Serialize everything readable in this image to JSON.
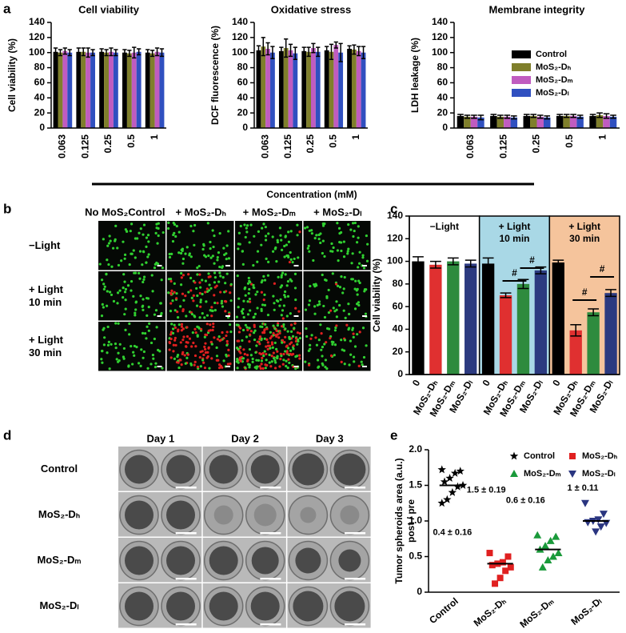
{
  "panel_labels": [
    "a",
    "b",
    "c",
    "d",
    "e"
  ],
  "chart_data": [
    {
      "type": "bar",
      "title": "Cell viability",
      "ylabel": "Cell viability (%)",
      "categories": [
        "0.063",
        "0.125",
        "0.25",
        "0.5",
        "1"
      ],
      "series": [
        {
          "color": "#000000",
          "values": [
            101,
            101,
            101,
            100,
            100
          ],
          "errors": [
            5,
            5,
            4,
            4,
            4
          ]
        },
        {
          "color": "#7f7f2b",
          "values": [
            100,
            101,
            100,
            99,
            99
          ],
          "errors": [
            4,
            5,
            4,
            4,
            4
          ]
        },
        {
          "color": "#c05cc0",
          "values": [
            102,
            100,
            101,
            100,
            101
          ],
          "errors": [
            4,
            6,
            5,
            7,
            5
          ]
        },
        {
          "color": "#3050c0",
          "values": [
            100,
            100,
            100,
            101,
            100
          ],
          "errors": [
            4,
            4,
            4,
            4,
            5
          ]
        }
      ],
      "ylim": [
        0,
        140
      ],
      "yticks": [
        0,
        20,
        40,
        60,
        80,
        100,
        120,
        140
      ]
    },
    {
      "type": "bar",
      "title": "Oxidative stress",
      "ylabel": "DCF fluorescence (%)",
      "xlabel": "Concentration (mM)",
      "categories": [
        "0.063",
        "0.125",
        "0.25",
        "0.5",
        "1"
      ],
      "series": [
        {
          "color": "#000000",
          "values": [
            103,
            102,
            102,
            103,
            105
          ],
          "errors": [
            6,
            5,
            5,
            5,
            4
          ]
        },
        {
          "color": "#7f7f2b",
          "values": [
            108,
            106,
            101,
            101,
            104
          ],
          "errors": [
            12,
            12,
            6,
            10,
            6
          ]
        },
        {
          "color": "#c05cc0",
          "values": [
            105,
            103,
            106,
            110,
            102
          ],
          "errors": [
            8,
            8,
            6,
            4,
            6
          ]
        },
        {
          "color": "#3050c0",
          "values": [
            100,
            99,
            101,
            100,
            100
          ],
          "errors": [
            8,
            8,
            6,
            12,
            8
          ]
        }
      ],
      "ylim": [
        0,
        140
      ],
      "yticks": [
        0,
        20,
        40,
        60,
        80,
        100,
        120,
        140
      ]
    },
    {
      "type": "bar",
      "title": "Membrane integrity",
      "ylabel": "LDH leakage (%)",
      "legend": "upper right",
      "categories": [
        "0.063",
        "0.125",
        "0.25",
        "0.5",
        "1"
      ],
      "series": [
        {
          "name": "Control",
          "color": "#000000",
          "values": [
            16,
            16,
            16,
            16,
            16
          ],
          "errors": [
            2,
            2,
            2,
            2,
            2
          ]
        },
        {
          "name": "MoS₂-Dₕ",
          "color": "#7f7f2b",
          "values": [
            15,
            15,
            16,
            16,
            17
          ],
          "errors": [
            2,
            2,
            2,
            2,
            3
          ]
        },
        {
          "name": "MoS₂-Dₘ",
          "color": "#c05cc0",
          "values": [
            15,
            15,
            15,
            16,
            16
          ],
          "errors": [
            2,
            2,
            2,
            2,
            3
          ]
        },
        {
          "name": "MoS₂-Dₗ",
          "color": "#3050c0",
          "values": [
            14,
            14,
            14,
            15,
            15
          ],
          "errors": [
            3,
            2,
            2,
            2,
            2
          ]
        }
      ],
      "ylim": [
        0,
        140
      ],
      "yticks": [
        0,
        20,
        40,
        60,
        80,
        100,
        120,
        140
      ]
    },
    {
      "type": "bar",
      "ylabel": "Cell viability (%)",
      "categories": [
        "0",
        "MoS₂-Dₕ",
        "MoS₂-Dₘ",
        "MoS₂-Dₗ",
        "0",
        "MoS₂-Dₕ",
        "MoS₂-Dₘ",
        "MoS₂-Dₗ",
        "0",
        "MoS₂-Dₕ",
        "MoS₂-Dₘ",
        "MoS₂-Dₗ"
      ],
      "values": [
        100,
        97,
        100,
        98,
        98,
        70,
        80,
        92,
        99,
        39,
        55,
        72
      ],
      "errors": [
        4,
        3,
        3,
        3,
        5,
        2,
        4,
        3,
        2,
        5,
        3,
        3
      ],
      "colors": [
        "#000000",
        "#e03030",
        "#2e8b3e",
        "#2c3a80",
        "#000000",
        "#e03030",
        "#2e8b3e",
        "#2c3a80",
        "#000000",
        "#e03030",
        "#2e8b3e",
        "#2c3a80"
      ],
      "groups": [
        {
          "label": [
            "−Light"
          ],
          "color": "#ffffff"
        },
        {
          "label": [
            "+ Light",
            "10 min"
          ],
          "color": "#a9d8e6"
        },
        {
          "label": [
            "+ Light",
            "30 min"
          ],
          "color": "#f5c49c"
        }
      ],
      "annotations": [
        "#",
        "#",
        "#",
        "#"
      ],
      "ylim": [
        0,
        140
      ],
      "yticks": [
        0,
        20,
        40,
        60,
        80,
        100,
        120,
        140
      ]
    },
    {
      "type": "scatter",
      "ylabel": [
        "Tumor spheroids area (a.u.)",
        "post / pre"
      ],
      "categories": [
        "Control",
        "MoS₂-Dₕ",
        "MoS₂-Dₘ",
        "MoS₂-Dₗ"
      ],
      "series": [
        {
          "name": "Control",
          "color": "#000000",
          "marker": "star",
          "values": [
            1.72,
            1.7,
            1.67,
            1.6,
            1.55,
            1.5,
            1.48,
            1.4,
            1.3,
            1.25
          ],
          "mean": 1.5,
          "mean_label": "1.5 ± 0.19"
        },
        {
          "name": "MoS₂-Dₕ",
          "color": "#e02020",
          "marker": "square",
          "values": [
            0.55,
            0.5,
            0.42,
            0.4,
            0.38,
            0.35,
            0.3,
            0.2,
            0.12
          ],
          "mean": 0.4,
          "mean_label": "0.4 ± 0.16"
        },
        {
          "name": "MoS₂-Dₘ",
          "color": "#1a9a3a",
          "marker": "triangle-up",
          "values": [
            0.8,
            0.78,
            0.72,
            0.65,
            0.6,
            0.55,
            0.5,
            0.45,
            0.35
          ],
          "mean": 0.6,
          "mean_label": "0.6 ± 0.16"
        },
        {
          "name": "MoS₂-Dₗ",
          "color": "#2a3580",
          "marker": "triangle-down",
          "values": [
            1.25,
            1.1,
            1.02,
            1.0,
            0.98,
            0.97,
            0.92,
            0.85
          ],
          "mean": 1,
          "mean_label": "1 ± 0.11"
        }
      ],
      "ylim": [
        0,
        2
      ],
      "yticks": [
        0,
        0.5,
        {
          "value": 1,
          "label": "1.0"
        },
        1.5,
        {
          "value": 2,
          "label": "2.0"
        }
      ]
    }
  ],
  "panel_b": {
    "columns": [
      {
        "text": "No MoS₂Control",
        "color": "#000000"
      },
      {
        "text": "+ MoS₂-Dₕ",
        "color": "#d02020"
      },
      {
        "text": "+ MoS₂-Dₘ",
        "color": "#20a040"
      },
      {
        "text": "+ MoS₂-Dₗ",
        "color": "#3a3aa0"
      }
    ],
    "rows": [
      {
        "lines": [
          "−Light"
        ]
      },
      {
        "lines": [
          "+ Light",
          "10 min"
        ]
      },
      {
        "lines": [
          "+ Light",
          "30 min"
        ]
      }
    ]
  },
  "panel_d": {
    "columns": [
      "Day 1",
      "Day 2",
      "Day 3"
    ],
    "rows": [
      {
        "text": "Control",
        "color": "#000000"
      },
      {
        "text": "MoS₂-Dₕ",
        "color": "#d02020"
      },
      {
        "text": "MoS₂-Dₘ",
        "color": "#20a040"
      },
      {
        "text": "MoS₂-Dₗ",
        "color": "#3a3aa0"
      }
    ]
  }
}
